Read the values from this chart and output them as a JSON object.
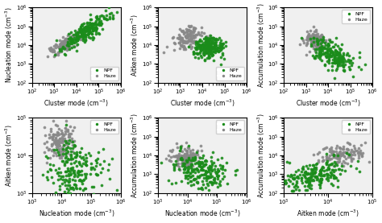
{
  "npf_color": "#1a8c1a",
  "haze_color": "#888888",
  "marker_size": 7,
  "alpha": 0.9,
  "background": "#f0f0f0",
  "plots": [
    {
      "xlabel": "Cluster mode (cm$^{-3}$)",
      "ylabel": "Nucleation mode (cm$^{-3}$)",
      "xlim": [
        100,
        1000000
      ],
      "ylim": [
        100,
        1000000
      ],
      "legend_loc": "lower right"
    },
    {
      "xlabel": "Cluster mode (cm$^{-3}$)",
      "ylabel": "Aitken mode (cm$^{-3}$)",
      "xlim": [
        100,
        1000000
      ],
      "ylim": [
        100,
        1000000
      ],
      "legend_loc": "lower right"
    },
    {
      "xlabel": "Cluster mode (cm$^{-3}$)",
      "ylabel": "Accumulation mode (cm$^{-3}$)",
      "xlim": [
        100,
        1000000
      ],
      "ylim": [
        100,
        1000000
      ],
      "legend_loc": "upper right"
    },
    {
      "xlabel": "Nucleation mode (cm$^{-3}$)",
      "ylabel": "Aitken mode (cm$^{-3}$)",
      "xlim": [
        1000,
        1000000
      ],
      "ylim": [
        1000,
        100000
      ],
      "legend_loc": "upper right"
    },
    {
      "xlabel": "Nucleation mode (cm$^{-3}$)",
      "ylabel": "Accumulation mode (cm$^{-3}$)",
      "xlim": [
        1000,
        1000000
      ],
      "ylim": [
        100,
        1000000
      ],
      "legend_loc": "upper right"
    },
    {
      "xlabel": "Aitken mode (cm$^{-3}$)",
      "ylabel": "Accumulation mode (cm$^{-3}$)",
      "xlim": [
        1000,
        100000
      ],
      "ylim": [
        100,
        1000000
      ],
      "legend_loc": "upper right"
    }
  ]
}
